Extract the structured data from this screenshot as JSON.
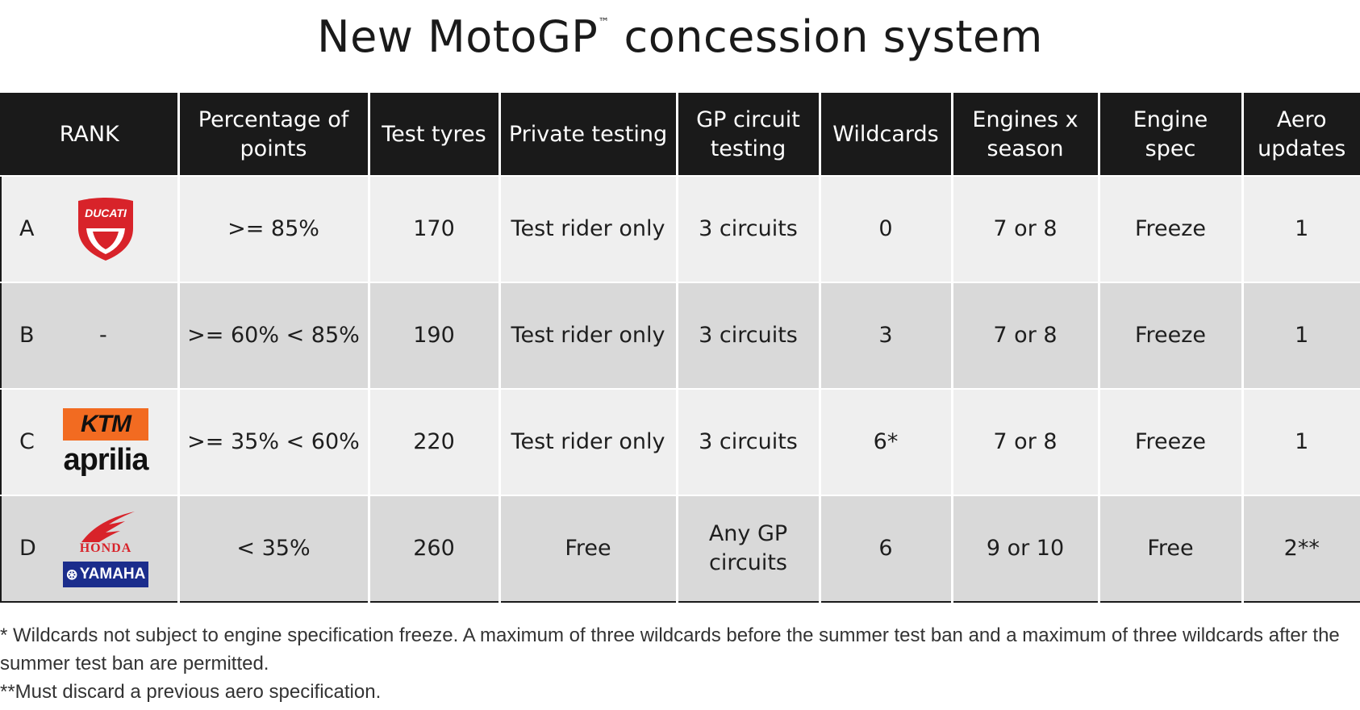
{
  "title": "New MotoGP",
  "title_tm": "™",
  "columns": [
    "RANK",
    "Percentage of points",
    "Test tyres",
    "Private testing",
    "GP circuit testing",
    "Wildcards",
    "Engines x season",
    "Engine spec",
    "Aero updates"
  ],
  "rows": [
    {
      "rank": "A",
      "brand_placeholder": "",
      "percentage": ">= 85%",
      "test_tyres": "170",
      "private_testing": "Test rider only",
      "gp_circuit_testing": "3 circuits",
      "wildcards": "0",
      "engines": "7 or 8",
      "engine_spec": "Freeze",
      "aero": "1"
    },
    {
      "rank": "B",
      "brand_placeholder": "-",
      "percentage": ">= 60% < 85%",
      "test_tyres": "190",
      "private_testing": "Test rider only",
      "gp_circuit_testing": "3 circuits",
      "wildcards": "3",
      "engines": "7 or 8",
      "engine_spec": "Freeze",
      "aero": "1"
    },
    {
      "rank": "C",
      "brand_placeholder": "",
      "percentage": ">= 35% < 60%",
      "test_tyres": "220",
      "private_testing": "Test rider only",
      "gp_circuit_testing": "3 circuits",
      "wildcards": "6*",
      "engines": "7 or 8",
      "engine_spec": "Freeze",
      "aero": "1"
    },
    {
      "rank": "D",
      "brand_placeholder": "",
      "percentage": "< 35%",
      "test_tyres": "260",
      "private_testing": "Free",
      "gp_circuit_testing": "Any GP circuits",
      "wildcards": "6",
      "engines": "9 or 10",
      "engine_spec": "Free",
      "aero": "2**"
    }
  ],
  "logos": {
    "ducati": "DUCATI",
    "ktm": "KTM",
    "aprilia": "aprilia",
    "honda": "HONDA",
    "yamaha": "YAMAHA"
  },
  "footnotes": [
    "* Wildcards not subject to engine specification freeze. A maximum of three wildcards before the summer test ban and a maximum of three wildcards after the summer test ban are permitted.",
    "**Must discard a previous aero specification."
  ],
  "colors": {
    "header_bg": "#1a1a1a",
    "row_light": "#efefef",
    "row_dark": "#d9d9d9",
    "ducati_red": "#d8232a",
    "ktm_orange": "#f26b21",
    "yamaha_blue": "#1b2d8c"
  }
}
